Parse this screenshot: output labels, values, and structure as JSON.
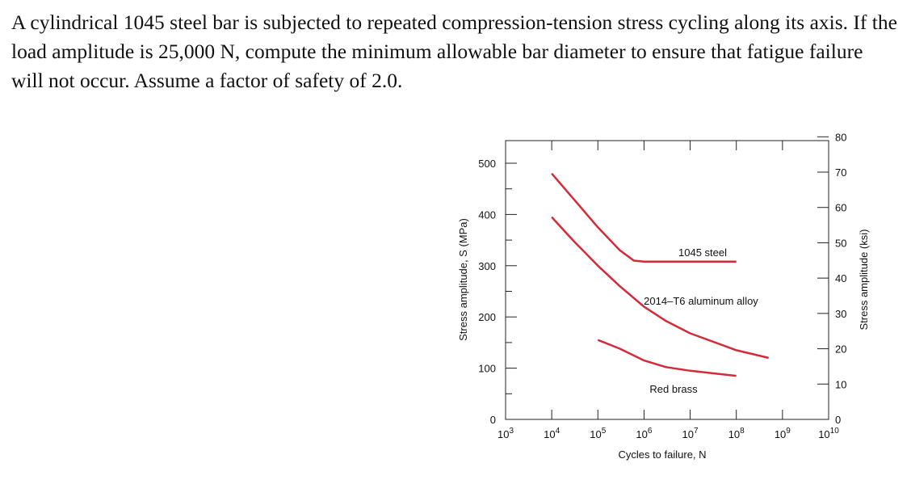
{
  "problem_text": "A cylindrical 1045 steel bar is subjected to repeated compression-tension stress cycling along its axis. If the load amplitude is 25,000 N, compute the minimum allowable bar diameter to ensure that fatigue failure will not occur. Assume a factor of safety of 2.0.",
  "chart_data": {
    "type": "line",
    "xlabel": "Cycles to failure, N",
    "ylabel": "Stress amplitude, S (MPa)",
    "ylabel_right": "Stress amplitude (ksi)",
    "x_scale": "log",
    "xlim": [
      1000,
      10000000000
    ],
    "x_ticks": [
      {
        "value": 1000,
        "base": "10",
        "exp": "3"
      },
      {
        "value": 10000,
        "base": "10",
        "exp": "4"
      },
      {
        "value": 100000,
        "base": "10",
        "exp": "5"
      },
      {
        "value": 1000000,
        "base": "10",
        "exp": "6"
      },
      {
        "value": 10000000,
        "base": "10",
        "exp": "7"
      },
      {
        "value": 100000000,
        "base": "10",
        "exp": "8"
      },
      {
        "value": 1000000000,
        "base": "10",
        "exp": "9"
      },
      {
        "value": 10000000000,
        "base": "10",
        "exp": "10"
      }
    ],
    "ylim": [
      0,
      550
    ],
    "y_ticks": [
      0,
      100,
      200,
      300,
      400,
      500
    ],
    "y_right_ticks": [
      0,
      10,
      20,
      30,
      40,
      50,
      60,
      70,
      80
    ],
    "series": [
      {
        "name": "1045 steel",
        "color": "#d42a3a",
        "points": [
          [
            10000,
            480
          ],
          [
            30000,
            430
          ],
          [
            100000,
            375
          ],
          [
            300000,
            330
          ],
          [
            600000,
            310
          ],
          [
            1000000,
            308
          ],
          [
            10000000,
            308
          ],
          [
            100000000,
            308
          ]
        ]
      },
      {
        "name": "2014–T6 aluminum alloy",
        "color": "#d42a3a",
        "points": [
          [
            10000,
            395
          ],
          [
            30000,
            348
          ],
          [
            100000,
            300
          ],
          [
            300000,
            260
          ],
          [
            1000000,
            220
          ],
          [
            3000000,
            192
          ],
          [
            10000000,
            168
          ],
          [
            100000000,
            135
          ],
          [
            500000000,
            120
          ]
        ]
      },
      {
        "name": "Red brass",
        "color": "#d42a3a",
        "points": [
          [
            100000,
            155
          ],
          [
            300000,
            138
          ],
          [
            1000000,
            115
          ],
          [
            3000000,
            102
          ],
          [
            10000000,
            95
          ],
          [
            100000000,
            85
          ]
        ]
      }
    ]
  }
}
